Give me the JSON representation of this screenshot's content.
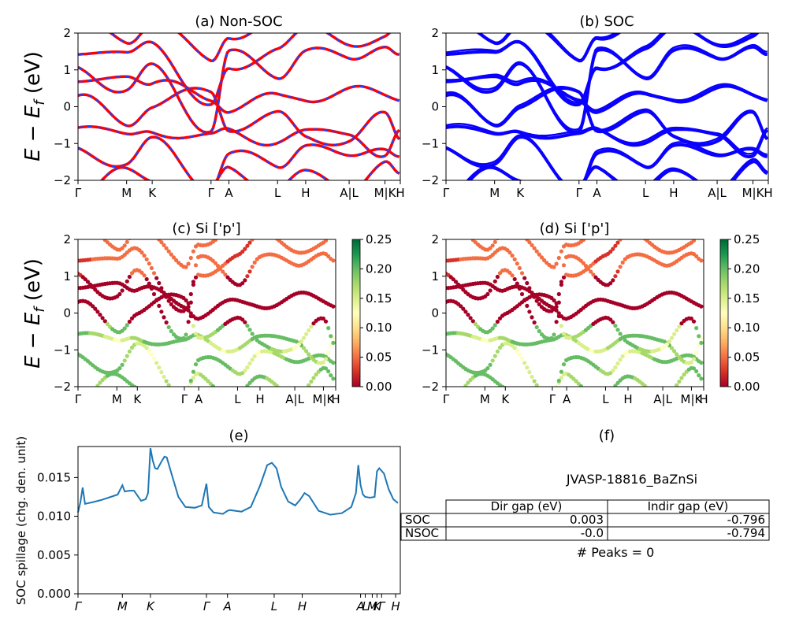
{
  "figure": {
    "ylabel_main": "E − E",
    "ylabel_sub": "f",
    "ylabel_unit": " (eV)",
    "kpath_labels": [
      "Γ",
      "M",
      "K",
      "Γ",
      "A",
      "L",
      "H",
      "A|L",
      "M|K",
      "H"
    ],
    "kpath_positions": [
      0.0,
      0.19,
      0.29,
      0.52,
      0.59,
      0.78,
      0.89,
      1.06,
      1.2,
      1.26
    ],
    "xmax": 1.26
  },
  "chart_data": [
    {
      "id": "a",
      "type": "line",
      "title": "(a) Non-SOC",
      "ylim": [
        -2,
        2
      ],
      "yticks": [
        -2,
        -1,
        0,
        1,
        2
      ],
      "colors": {
        "solid": "#ff0000",
        "dash": "#1f3fff"
      }
    },
    {
      "id": "b",
      "type": "line",
      "title": "(b) SOC",
      "ylim": [
        -2,
        2
      ],
      "yticks": [
        -2,
        -1,
        0,
        1,
        2
      ],
      "colors": {
        "solid": "#0a00ff"
      }
    },
    {
      "id": "c",
      "type": "scatter",
      "title": "(c)  Si ['p']",
      "ylim": [
        -2,
        2
      ],
      "yticks": [
        -2,
        -1,
        0,
        1,
        2
      ],
      "colorbar": {
        "range": [
          0.0,
          0.25
        ],
        "ticks": [
          "0.00",
          "0.05",
          "0.10",
          "0.15",
          "0.20",
          "0.25"
        ],
        "cmap": "RdYlGn"
      }
    },
    {
      "id": "d",
      "type": "scatter",
      "title": "(d) Si ['p']",
      "ylim": [
        -2,
        2
      ],
      "yticks": [
        -2,
        -1,
        0,
        1,
        2
      ],
      "colorbar": {
        "range": [
          0.0,
          0.25
        ],
        "ticks": [
          "0.00",
          "0.05",
          "0.10",
          "0.15",
          "0.20",
          "0.25"
        ],
        "cmap": "RdYlGn"
      }
    },
    {
      "id": "e",
      "type": "line",
      "title": "(e)",
      "ylabel": "SOC spillage (chg. den. unit)",
      "ylim": [
        0,
        0.019
      ],
      "yticks": [
        "0.000",
        "0.005",
        "0.010",
        "0.015"
      ],
      "ytick_values": [
        0,
        0.005,
        0.01,
        0.015
      ],
      "xtick_labels": [
        "Γ",
        "M",
        "K",
        "Γ",
        "A",
        "L",
        "H",
        "A",
        "L",
        "M",
        "K",
        "Γ",
        "H"
      ],
      "xtick_positions": [
        0.0,
        0.19,
        0.31,
        0.55,
        0.64,
        0.84,
        0.96,
        1.21,
        1.23,
        1.26,
        1.28,
        1.3,
        1.36
      ],
      "xmax": 1.38,
      "color": "#1f77b4",
      "x": [
        0.0,
        0.01,
        0.02,
        0.03,
        0.06,
        0.1,
        0.14,
        0.17,
        0.18,
        0.19,
        0.2,
        0.22,
        0.24,
        0.27,
        0.29,
        0.3,
        0.31,
        0.32,
        0.33,
        0.34,
        0.36,
        0.37,
        0.38,
        0.4,
        0.43,
        0.46,
        0.5,
        0.53,
        0.54,
        0.55,
        0.56,
        0.58,
        0.6,
        0.62,
        0.64,
        0.65,
        0.7,
        0.74,
        0.78,
        0.81,
        0.83,
        0.85,
        0.87,
        0.9,
        0.93,
        0.95,
        0.97,
        0.99,
        1.03,
        1.08,
        1.13,
        1.17,
        1.19,
        1.2,
        1.21,
        1.22,
        1.23,
        1.25,
        1.27,
        1.28,
        1.29,
        1.31,
        1.33,
        1.35,
        1.37
      ],
      "y": [
        0.0105,
        0.0118,
        0.0137,
        0.0116,
        0.0118,
        0.0121,
        0.0125,
        0.0128,
        0.0134,
        0.014,
        0.0132,
        0.0133,
        0.0133,
        0.012,
        0.0122,
        0.013,
        0.0188,
        0.0172,
        0.0162,
        0.0161,
        0.0172,
        0.0177,
        0.0176,
        0.0155,
        0.0125,
        0.0112,
        0.0111,
        0.0114,
        0.0128,
        0.0142,
        0.0112,
        0.0105,
        0.0104,
        0.0103,
        0.0107,
        0.0108,
        0.0106,
        0.0112,
        0.014,
        0.0166,
        0.0169,
        0.0162,
        0.0138,
        0.0119,
        0.0114,
        0.0121,
        0.013,
        0.0126,
        0.0107,
        0.0102,
        0.0104,
        0.0112,
        0.013,
        0.0166,
        0.014,
        0.0128,
        0.0125,
        0.0124,
        0.0125,
        0.0158,
        0.0162,
        0.0155,
        0.0135,
        0.0122,
        0.0117
      ]
    }
  ],
  "panel_f": {
    "title": "(f)",
    "caption": "JVASP-18816_BaZnSi",
    "table": {
      "headers": [
        "",
        "Dir gap (eV)",
        "Indir gap (eV)"
      ],
      "rows": [
        [
          "SOC",
          "0.003",
          "-0.796"
        ],
        [
          "NSOC",
          "-0.0",
          "-0.794"
        ]
      ]
    },
    "peaks": "# Peaks = 0"
  }
}
